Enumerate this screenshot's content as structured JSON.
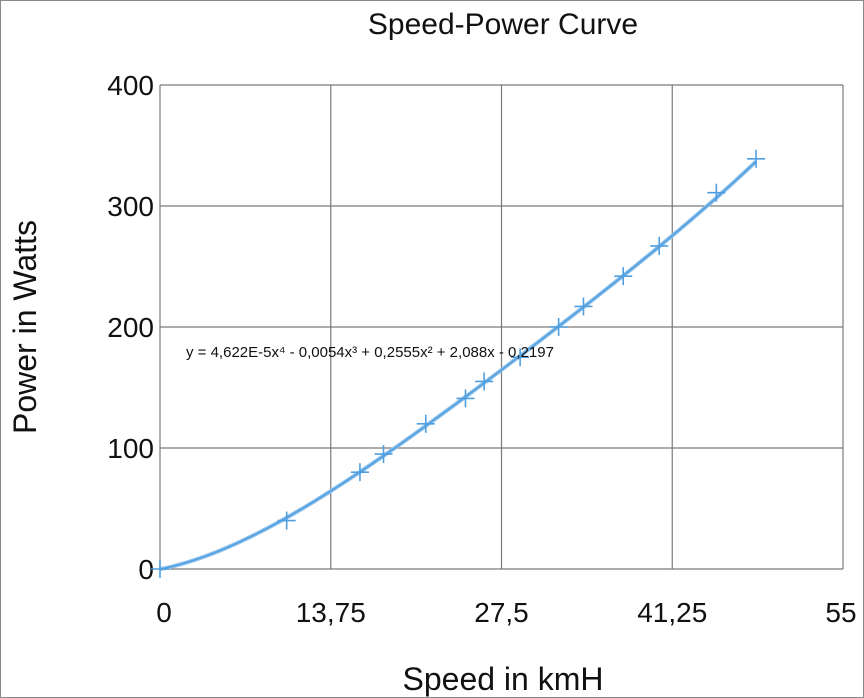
{
  "chart_data": {
    "type": "scatter",
    "title": "Speed-Power Curve",
    "xlabel": "Speed in kmH",
    "ylabel": "Power in Watts",
    "xlim": [
      0,
      55
    ],
    "ylim": [
      0,
      400
    ],
    "x_ticks": [
      "0",
      "13,75",
      "27,5",
      "41,25",
      "55"
    ],
    "y_ticks": [
      "0",
      "100",
      "200",
      "300",
      "400"
    ],
    "x_tick_values": [
      0,
      13.75,
      27.5,
      41.25,
      55
    ],
    "y_tick_values": [
      0,
      100,
      200,
      300,
      400
    ],
    "grid": true,
    "legend": "none",
    "marker": "plus",
    "series_color": "#4f9fe0",
    "trendline_color": "#8ec0ea",
    "trendline": {
      "type": "polynomial",
      "order": 4,
      "coefficients": [
        4.622e-05,
        -0.0054,
        0.2555,
        2.088,
        -0.2197
      ],
      "equation_label": "y = 4,622E-5x⁴ - 0,0054x³ + 0,2555x² + 2,088x - 0,2197"
    },
    "series": [
      {
        "x": [
          0,
          10.2,
          16.1,
          18.0,
          21.4,
          24.6,
          26.1,
          29.0,
          32.1,
          34.1,
          37.3,
          40.2,
          44.8,
          48.0
        ],
        "y": [
          0,
          40,
          80,
          95,
          120,
          141,
          155,
          175,
          200,
          217,
          242,
          267,
          311,
          339
        ]
      }
    ]
  }
}
